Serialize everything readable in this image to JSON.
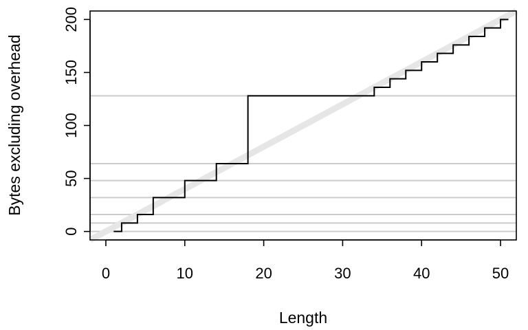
{
  "chart_data": {
    "type": "line",
    "title": "",
    "xlabel": "Length",
    "ylabel": "Bytes excluding overhead",
    "xlim": [
      -2,
      52
    ],
    "ylim": [
      -8,
      208
    ],
    "x_ticks": [
      0,
      10,
      20,
      30,
      40,
      50
    ],
    "y_ticks": [
      0,
      50,
      100,
      150,
      200
    ],
    "grid": false,
    "reference_hlines": [
      0,
      8,
      16,
      32,
      48,
      64,
      128
    ],
    "reference_line": {
      "slope": 4,
      "intercept": 0,
      "color": "#e6e6e6"
    },
    "series": [
      {
        "step": "post",
        "x": [
          1,
          2,
          4,
          6,
          10,
          14,
          18,
          34,
          36,
          38,
          40,
          42,
          44,
          46,
          48,
          50,
          51
        ],
        "values": [
          0,
          8,
          16,
          32,
          48,
          64,
          128,
          136,
          144,
          152,
          160,
          168,
          176,
          184,
          192,
          200,
          200
        ]
      }
    ],
    "colors": {
      "step_line": "#000000",
      "reference_hlines": "#cccccc",
      "axes": "#000000"
    }
  }
}
